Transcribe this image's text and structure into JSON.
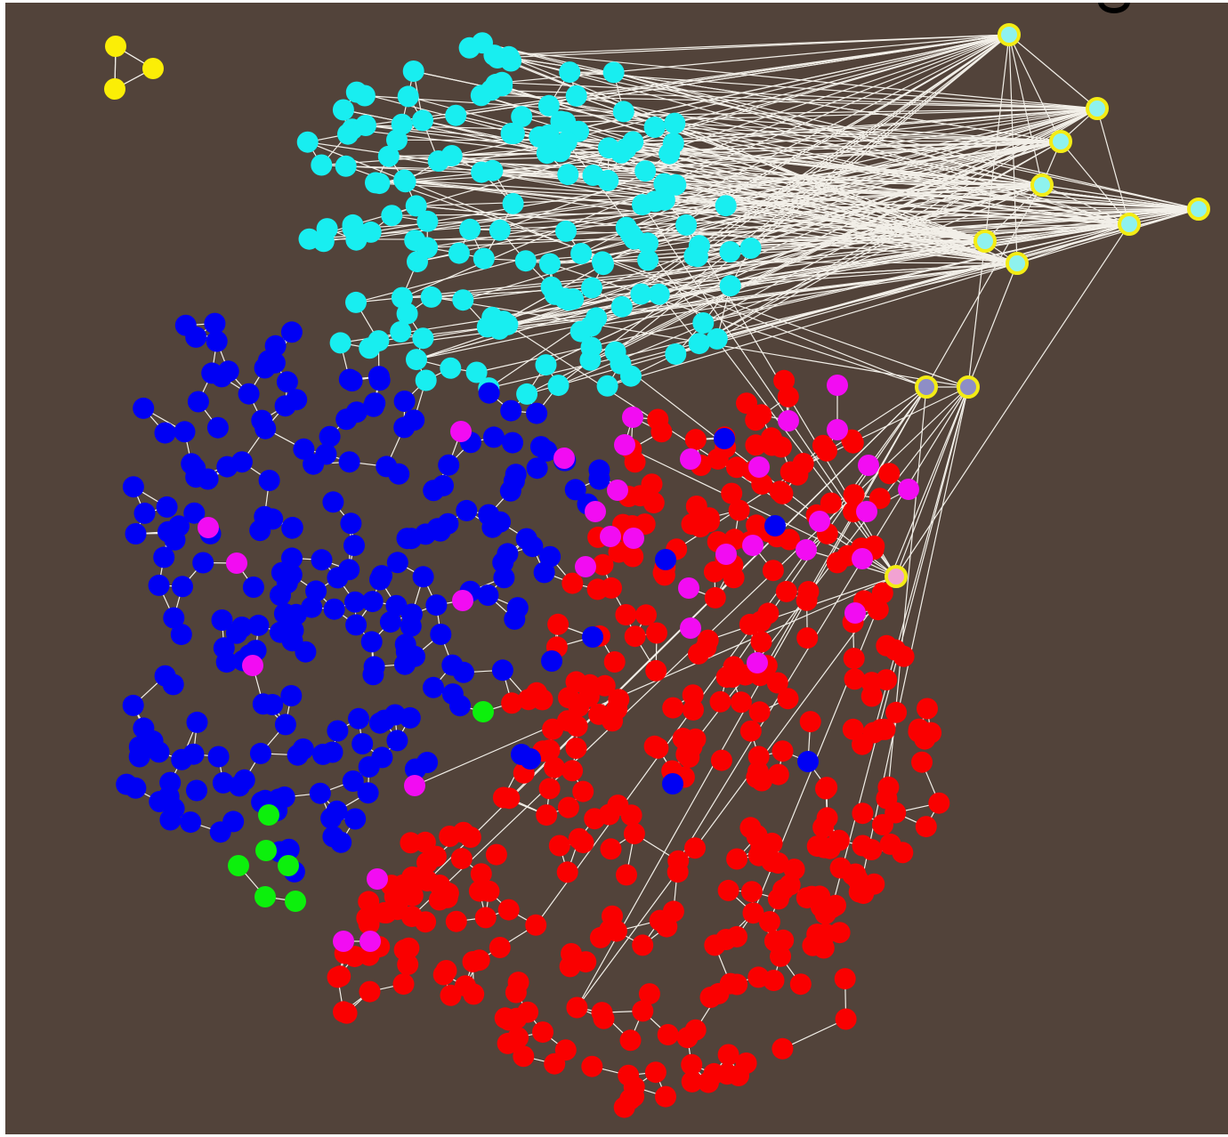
{
  "colors": {
    "background": "#52433a",
    "edge": "#f2efe8",
    "hub_ring": "#f3ec15",
    "cyan": "#18eef0",
    "blue": "#0000f4",
    "red": "#fa0000",
    "magenta": "#f20cf2",
    "green": "#0cf00c",
    "yellow": "#fbee06",
    "hub_cyan": "#8ef2ee",
    "hub_lavender": "#8e8ec6",
    "hub_pink": "#f2a2d2"
  },
  "graph": {
    "communities": [
      "cyan",
      "blue",
      "red",
      "magenta",
      "green",
      "yellow"
    ],
    "hub_nodes": [
      "hub_cyan",
      "hub_lavender",
      "hub_pink"
    ],
    "seed": 42
  }
}
